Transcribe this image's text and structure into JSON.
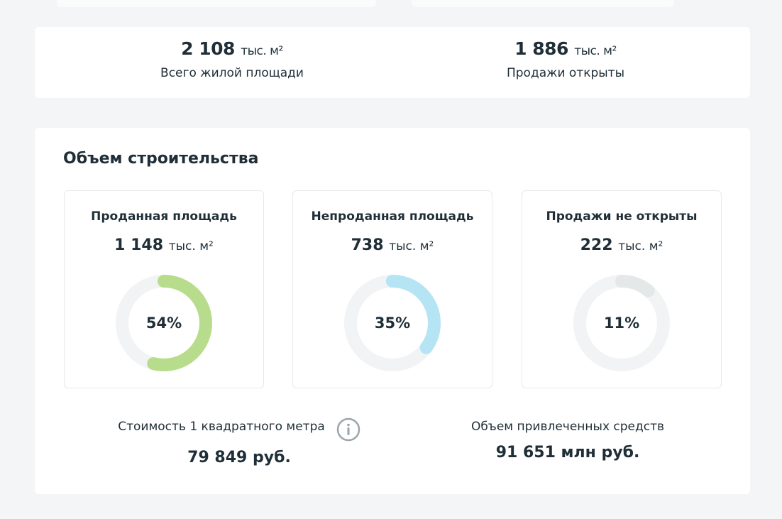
{
  "summary": [
    {
      "value": "2 108",
      "unit": "тыс. м²",
      "label": "Всего жилой площади"
    },
    {
      "value": "1 886",
      "unit": "тыс. м²",
      "label": "Продажи открыты"
    }
  ],
  "construction": {
    "title": "Объем строительства",
    "cards": [
      {
        "title": "Проданная площадь",
        "value": "1 148",
        "unit": "тыс. м²",
        "percent": {
          "value": 54,
          "label": "54%"
        },
        "color": "#b7dd8c"
      },
      {
        "title": "Непроданная площадь",
        "value": "738",
        "unit": "тыс. м²",
        "percent": {
          "value": 35,
          "label": "35%"
        },
        "color": "#b5e4f4"
      },
      {
        "title": "Продажи не открыты",
        "value": "222",
        "unit": "тыс. м²",
        "percent": {
          "value": 11,
          "label": "11%"
        },
        "color": "#e4e8e9"
      }
    ],
    "price": {
      "label": "Стоимость 1 квадратного метра",
      "value": "79 849 руб."
    },
    "funds": {
      "label": "Объем привлеченных средств",
      "value": "91 651 млн руб."
    }
  }
}
